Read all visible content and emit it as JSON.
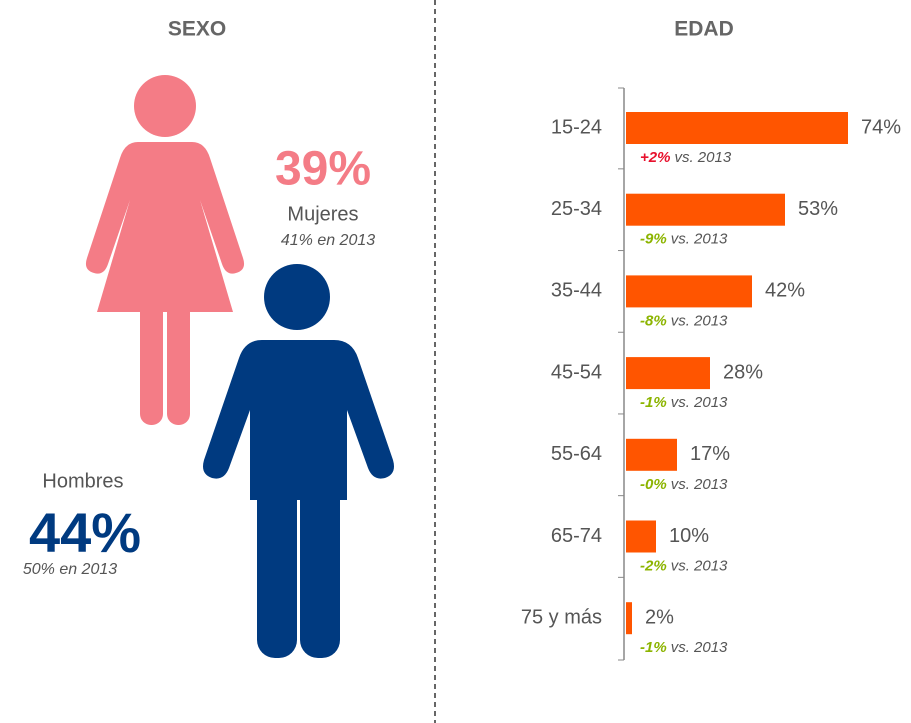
{
  "sexo": {
    "title": "SEXO",
    "mujeres": {
      "value": "39%",
      "label": "Mujeres",
      "previous": "41% en 2013",
      "color": "#f47c86"
    },
    "hombres": {
      "value": "44%",
      "label": "Hombres",
      "previous": "50% en 2013",
      "color": "#003a80"
    }
  },
  "chart_data": {
    "type": "hbar",
    "title": "EDAD",
    "categories": [
      "15-24",
      "25-34",
      "35-44",
      "45-54",
      "55-64",
      "65-74",
      "75 y más"
    ],
    "values": [
      74,
      53,
      42,
      28,
      17,
      10,
      2
    ],
    "value_labels": [
      "74%",
      "53%",
      "42%",
      "28%",
      "17%",
      "10%",
      "2%"
    ],
    "color": "#ff5500",
    "xlim": [
      0,
      100
    ],
    "changes": [
      {
        "text": "+2%",
        "color": "#e8112d"
      },
      {
        "text": "-9%",
        "color": "#8cb400"
      },
      {
        "text": "-8%",
        "color": "#8cb400"
      },
      {
        "text": "-1%",
        "color": "#8cb400"
      },
      {
        "text": "-0%",
        "color": "#8cb400"
      },
      {
        "text": "-2%",
        "color": "#8cb400"
      },
      {
        "text": "-1%",
        "color": "#8cb400"
      }
    ],
    "comparison_label": "vs. 2013"
  }
}
